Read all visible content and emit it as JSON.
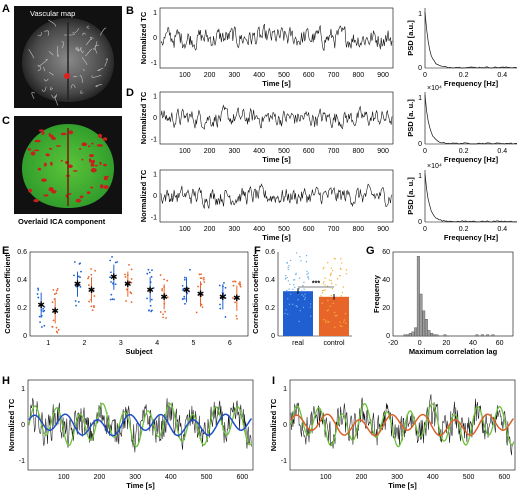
{
  "panels": {
    "A": {
      "label": "A",
      "title": "Vascular map"
    },
    "B": {
      "label": "B",
      "ylabel": "Normalized TC",
      "xlabel": "Time [s]",
      "xticks": [
        "100",
        "200",
        "300",
        "400",
        "500",
        "600",
        "700",
        "800",
        "900"
      ],
      "yticks": [
        "-1",
        "0",
        "1"
      ],
      "psd": {
        "ylabel": "PSD [a.u.]",
        "xlabel": "Frequency [Hz]",
        "xticks": [
          "0",
          "0.2",
          "0.4"
        ],
        "yticks": [
          "0",
          "1"
        ],
        "exp": ""
      }
    },
    "C": {
      "label": "C",
      "caption": "Overlaid ICA component"
    },
    "D": {
      "label": "D",
      "ylabel": "Normalized TC",
      "xlabel": "Time [s]",
      "xticks": [
        "100",
        "200",
        "300",
        "400",
        "500",
        "600",
        "700",
        "800",
        "900"
      ],
      "yticks": [
        "-1",
        "0",
        "1"
      ],
      "psd": {
        "ylabel": "PSD [a. u.]",
        "xlabel": "Frequency [Hz]",
        "xticks": [
          "0",
          "0.2",
          "0.4"
        ],
        "yticks": [
          "0",
          "1"
        ],
        "exp": "×10⁴"
      }
    },
    "D2": {
      "ylabel": "Normalized TC",
      "xlabel": "Time [s]",
      "xticks": [
        "100",
        "200",
        "300",
        "400",
        "500",
        "600",
        "700",
        "800",
        "900"
      ],
      "yticks": [
        "-1",
        "0",
        "1"
      ],
      "psd": {
        "ylabel": "PSD [a. u.]",
        "xlabel": "Frequency [Hz]",
        "xticks": [
          "0",
          "0.2",
          "0.4"
        ],
        "yticks": [
          "0",
          "1"
        ],
        "exp": "×10⁴"
      }
    },
    "E": {
      "label": "E",
      "ylabel": "Correlation coefficient",
      "xlabel": "Subject",
      "xticks": [
        "1",
        "2",
        "3",
        "4",
        "5",
        "6"
      ],
      "yticks": [
        "0",
        "0.2",
        "0.4",
        "0.6"
      ]
    },
    "F": {
      "label": "F",
      "ylabel": "Correlation coefficient",
      "categories": [
        "real",
        "control"
      ],
      "yticks": [
        "0",
        "0.2",
        "0.4",
        "0.6"
      ],
      "sig": "***"
    },
    "G": {
      "label": "G",
      "ylabel": "Frequency",
      "xlabel": "Maximum correlation lag",
      "xticks": [
        "-20",
        "0",
        "20",
        "40",
        "60"
      ],
      "yticks": [
        "0",
        "20",
        "40",
        "60"
      ]
    },
    "H": {
      "label": "H",
      "ylabel": "Normalized TC",
      "xlabel": "Time [s]",
      "xticks": [
        "100",
        "200",
        "300",
        "400",
        "500",
        "600"
      ],
      "yticks": [
        "-1",
        "0",
        "1"
      ]
    },
    "I": {
      "label": "I",
      "ylabel": "Normalized TC",
      "xlabel": "Time [s]",
      "xticks": [
        "100",
        "200",
        "300",
        "400",
        "500",
        "600"
      ],
      "yticks": [
        "-1",
        "0",
        "1"
      ]
    }
  },
  "colors": {
    "trace": "#111111",
    "real": "#1f5fd1",
    "control": "#e8652a",
    "green": "#6cc23a",
    "blue": "#1f4fc8",
    "orange": "#d9622b",
    "hist": "#9a9a9a"
  },
  "chart_data": [
    {
      "panel": "E",
      "type": "scatter",
      "xlabel": "Subject",
      "ylabel": "Correlation coefficient",
      "ylim": [
        0,
        0.6
      ],
      "categories": [
        "1",
        "2",
        "3",
        "4",
        "5",
        "6"
      ],
      "series": [
        {
          "name": "",
          "values": [
            0.22,
            0.37,
            0.42,
            0.33,
            0.33,
            0.28
          ]
        },
        {
          "name": "",
          "values": [
            0.18,
            0.33,
            0.37,
            0.28,
            0.3,
            0.27
          ]
        }
      ]
    },
    {
      "panel": "F",
      "type": "bar",
      "ylabel": "Correlation coefficient",
      "ylim": [
        0,
        0.6
      ],
      "categories": [
        "real",
        "control"
      ],
      "values": [
        0.32,
        0.28
      ]
    },
    {
      "panel": "G",
      "type": "bar",
      "xlabel": "Maximum correlation lag",
      "ylabel": "Frequency",
      "ylim": [
        0,
        60
      ],
      "x": [
        -10,
        -8,
        -6,
        -4,
        -2,
        0,
        2,
        4,
        6,
        8,
        10,
        12,
        14,
        20,
        44,
        48,
        52,
        56
      ],
      "values": [
        1,
        1,
        2,
        3,
        6,
        57,
        30,
        18,
        12,
        4,
        2,
        1,
        1,
        1,
        1,
        1,
        1,
        1
      ]
    }
  ]
}
